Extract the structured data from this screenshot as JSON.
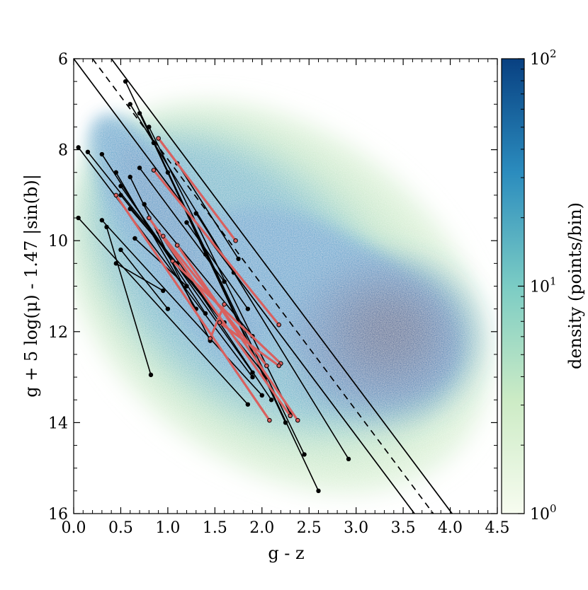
{
  "chart_data": {
    "type": "scatter",
    "title": "",
    "xlabel": "g - z",
    "ylabel": "g + 5 log(μ) - 1.47 |sin(b)|",
    "xlim": [
      0.0,
      4.5
    ],
    "ylim": [
      16,
      6
    ],
    "y_inverted": true,
    "grid": false,
    "xticks": [
      "0.0",
      "0.5",
      "1.0",
      "1.5",
      "2.0",
      "2.5",
      "3.0",
      "3.5",
      "4.0",
      "4.5"
    ],
    "yticks": [
      "6",
      "8",
      "10",
      "12",
      "14",
      "16"
    ],
    "background": "2D density histogram of points (g - z vs reduced proper motion); broad ridge from (0.4, 7.5) to (2.3, 14.5) plus a dense blob centred near (3.4, 12.8)",
    "colorbar": {
      "label": "density (points/bin)",
      "scale": "log",
      "range": [
        1,
        100
      ],
      "ticks": [
        {
          "value": 1,
          "base": "10",
          "exp": "0"
        },
        {
          "value": 10,
          "base": "10",
          "exp": "1"
        },
        {
          "value": 100,
          "base": "10",
          "exp": "2"
        }
      ],
      "colormap": [
        "#f7fcf0",
        "#ccebc5",
        "#7bccc4",
        "#2b8cbe",
        "#084081"
      ]
    },
    "reference_lines": [
      {
        "style": "solid",
        "points": [
          [
            0.0,
            6.0
          ],
          [
            3.62,
            16.0
          ]
        ]
      },
      {
        "style": "solid",
        "points": [
          [
            0.4,
            6.0
          ],
          [
            4.02,
            16.0
          ]
        ]
      },
      {
        "style": "dashed",
        "points": [
          [
            0.2,
            6.0
          ],
          [
            3.82,
            16.0
          ]
        ]
      }
    ],
    "series": [
      {
        "color": "#000000",
        "marker": "filled circle",
        "segments": [
          [
            [
              0.05,
              7.95
            ],
            [
              1.9,
              13.0
            ]
          ],
          [
            [
              0.15,
              8.05
            ],
            [
              1.6,
              11.8
            ]
          ],
          [
            [
              0.3,
              8.1
            ],
            [
              1.4,
              11.6
            ]
          ],
          [
            [
              0.05,
              9.5
            ],
            [
              1.85,
              13.6
            ]
          ],
          [
            [
              0.3,
              9.55
            ],
            [
              2.0,
              13.4
            ]
          ],
          [
            [
              0.35,
              9.7
            ],
            [
              0.82,
              12.95
            ]
          ],
          [
            [
              0.5,
              9.0
            ],
            [
              2.05,
              13.0
            ]
          ],
          [
            [
              0.55,
              6.5
            ],
            [
              2.6,
              15.5
            ]
          ],
          [
            [
              0.6,
              7.0
            ],
            [
              2.92,
              14.8
            ]
          ],
          [
            [
              0.7,
              7.2
            ],
            [
              2.45,
              14.7
            ]
          ],
          [
            [
              0.8,
              7.5
            ],
            [
              2.3,
              13.8
            ]
          ],
          [
            [
              0.85,
              7.85
            ],
            [
              2.25,
              14.0
            ]
          ],
          [
            [
              0.45,
              8.5
            ],
            [
              1.3,
              11.5
            ]
          ],
          [
            [
              0.5,
              8.8
            ],
            [
              1.9,
              12.9
            ]
          ],
          [
            [
              0.6,
              8.6
            ],
            [
              1.45,
              12.2
            ]
          ],
          [
            [
              0.7,
              8.4
            ],
            [
              1.6,
              10.9
            ]
          ],
          [
            [
              0.75,
              9.2
            ],
            [
              1.9,
              12.1
            ]
          ],
          [
            [
              0.9,
              9.8
            ],
            [
              2.1,
              13.5
            ]
          ],
          [
            [
              1.0,
              8.5
            ],
            [
              1.4,
              10.3
            ]
          ],
          [
            [
              1.1,
              8.3
            ],
            [
              1.75,
              10.4
            ]
          ],
          [
            [
              1.2,
              9.6
            ],
            [
              1.85,
              11.5
            ]
          ],
          [
            [
              1.3,
              9.4
            ],
            [
              1.7,
              10.7
            ]
          ],
          [
            [
              0.5,
              10.2
            ],
            [
              1.0,
              11.5
            ]
          ],
          [
            [
              0.45,
              10.5
            ],
            [
              0.95,
              11.1
            ]
          ],
          [
            [
              0.6,
              9.3
            ],
            [
              1.1,
              10.5
            ]
          ],
          [
            [
              0.65,
              9.95
            ],
            [
              1.2,
              11.0
            ]
          ]
        ]
      },
      {
        "color": "#d9605e",
        "marker": "open circle",
        "segments": [
          [
            [
              0.9,
              7.75
            ],
            [
              1.72,
              10.0
            ]
          ],
          [
            [
              0.85,
              8.45
            ],
            [
              2.18,
              11.85
            ]
          ],
          [
            [
              0.45,
              9.0
            ],
            [
              2.08,
              13.95
            ]
          ],
          [
            [
              0.8,
              9.5
            ],
            [
              2.3,
              13.85
            ]
          ],
          [
            [
              1.1,
              10.1
            ],
            [
              2.38,
              13.95
            ]
          ],
          [
            [
              1.05,
              10.45
            ],
            [
              2.2,
              12.7
            ]
          ],
          [
            [
              0.95,
              9.9
            ],
            [
              2.05,
              12.75
            ]
          ],
          [
            [
              1.55,
              11.8
            ],
            [
              2.18,
              12.75
            ]
          ],
          [
            [
              1.45,
              12.15
            ],
            [
              1.6,
              11.4
            ]
          ]
        ]
      }
    ]
  }
}
